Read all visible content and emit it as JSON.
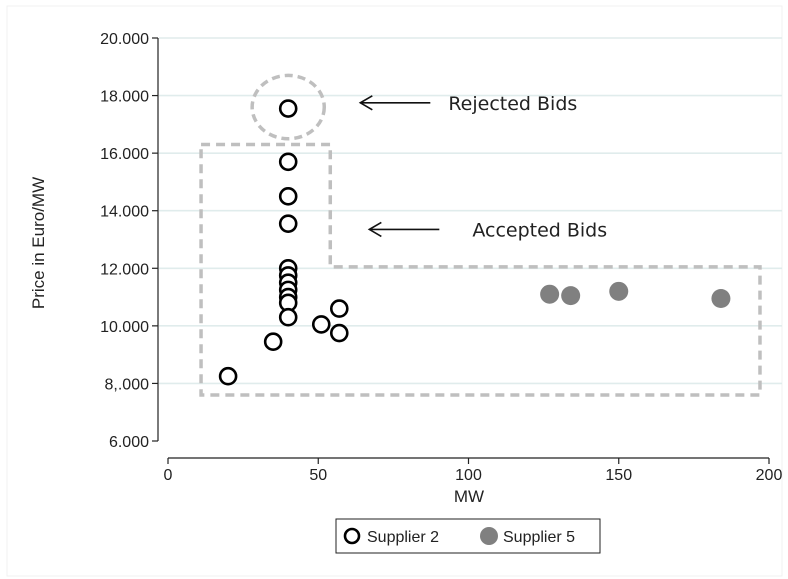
{
  "chart_data": {
    "type": "scatter",
    "xlabel": "MW",
    "ylabel": "Price in Euro/MW",
    "xlim": [
      0,
      200
    ],
    "ylim": [
      6000,
      20000
    ],
    "grid": true,
    "x_ticks": [
      {
        "value": 0,
        "label": "0"
      },
      {
        "value": 50,
        "label": "50"
      },
      {
        "value": 100,
        "label": "100"
      },
      {
        "value": 150,
        "label": "150"
      },
      {
        "value": 200,
        "label": "200"
      }
    ],
    "y_ticks": [
      {
        "value": 6000,
        "label": "6.000"
      },
      {
        "value": 8000,
        "label": "8,.000"
      },
      {
        "value": 10000,
        "label": "10.000"
      },
      {
        "value": 12000,
        "label": "12.000"
      },
      {
        "value": 14000,
        "label": "14.000"
      },
      {
        "value": 16000,
        "label": "16.000"
      },
      {
        "value": 18000,
        "label": "18.000"
      },
      {
        "value": 20000,
        "label": "20.000"
      }
    ],
    "series": [
      {
        "name": "Supplier 2",
        "marker": "hollow-circle",
        "color": "#000000",
        "points": [
          {
            "x": 40,
            "y": 17550
          },
          {
            "x": 40,
            "y": 15700
          },
          {
            "x": 40,
            "y": 14500
          },
          {
            "x": 40,
            "y": 13550
          },
          {
            "x": 40,
            "y": 12000
          },
          {
            "x": 40,
            "y": 11750
          },
          {
            "x": 40,
            "y": 11500
          },
          {
            "x": 40,
            "y": 11250
          },
          {
            "x": 40,
            "y": 11000
          },
          {
            "x": 40,
            "y": 10800
          },
          {
            "x": 40,
            "y": 10300
          },
          {
            "x": 51,
            "y": 10050
          },
          {
            "x": 57,
            "y": 10600
          },
          {
            "x": 57,
            "y": 9750
          },
          {
            "x": 35,
            "y": 9450
          },
          {
            "x": 20,
            "y": 8250
          }
        ]
      },
      {
        "name": "Supplier 5",
        "marker": "filled-circle",
        "color": "#808080",
        "points": [
          {
            "x": 127,
            "y": 11100
          },
          {
            "x": 134,
            "y": 11050
          },
          {
            "x": 150,
            "y": 11200
          },
          {
            "x": 184,
            "y": 10950
          }
        ]
      }
    ],
    "annotations": [
      {
        "text": "Rejected Bids",
        "arrow_x": 64,
        "arrow_y": 17750
      },
      {
        "text": "Accepted Bids",
        "arrow_x": 67,
        "arrow_y": 13350
      }
    ],
    "accepted_region": [
      [
        11,
        16300
      ],
      [
        54,
        16300
      ],
      [
        54,
        12050
      ],
      [
        197,
        12050
      ],
      [
        197,
        7600
      ],
      [
        11,
        7600
      ]
    ],
    "rejected_ellipse": {
      "cx": 40,
      "cy": 17600,
      "rx": 12,
      "ry": 1100
    },
    "legend": {
      "placement": "bottom-center"
    }
  }
}
